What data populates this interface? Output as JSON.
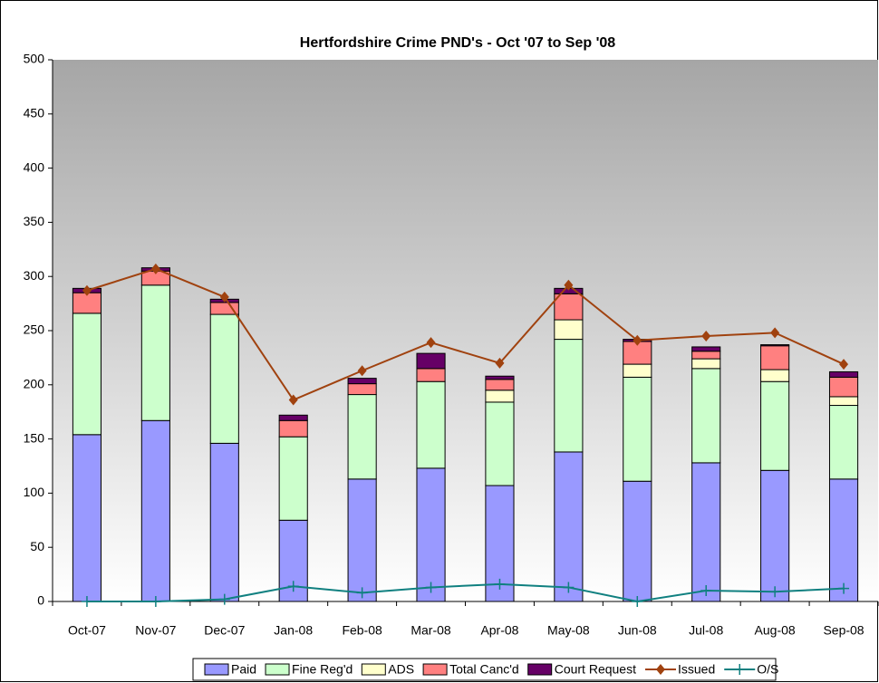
{
  "chart_data": {
    "type": "bar",
    "stacked": true,
    "title": "Hertfordshire Crime PND's - Oct '07 to Sep '08",
    "categories": [
      "Oct-07",
      "Nov-07",
      "Dec-07",
      "Jan-08",
      "Feb-08",
      "Mar-08",
      "Apr-08",
      "May-08",
      "Jun-08",
      "Jul-08",
      "Aug-08",
      "Sep-08"
    ],
    "ylim": [
      0,
      500
    ],
    "yticks": [
      0,
      50,
      100,
      150,
      200,
      250,
      300,
      350,
      400,
      450,
      500
    ],
    "series": [
      {
        "name": "Paid",
        "type": "bar",
        "color": "#9999ff",
        "values": [
          154,
          167,
          146,
          75,
          113,
          123,
          107,
          138,
          111,
          128,
          121,
          113
        ]
      },
      {
        "name": "Fine Reg'd",
        "type": "bar",
        "color": "#ccffcc",
        "values": [
          112,
          125,
          119,
          77,
          78,
          80,
          77,
          104,
          96,
          87,
          82,
          68
        ]
      },
      {
        "name": "ADS",
        "type": "bar",
        "color": "#ffffcc",
        "values": [
          0,
          0,
          0,
          0,
          0,
          0,
          11,
          18,
          12,
          9,
          11,
          8
        ]
      },
      {
        "name": "Total Canc'd",
        "type": "bar",
        "color": "#ff8080",
        "values": [
          19,
          13,
          11,
          15,
          10,
          12,
          10,
          24,
          21,
          7,
          22,
          18
        ]
      },
      {
        "name": "Court Request",
        "type": "bar",
        "color": "#660066",
        "values": [
          4,
          3,
          3,
          5,
          5,
          14,
          3,
          5,
          2,
          4,
          1,
          5
        ]
      },
      {
        "name": "Issued",
        "type": "line",
        "marker": "diamond",
        "color": "#a0420f",
        "values": [
          287,
          307,
          281,
          186,
          213,
          239,
          220,
          292,
          241,
          245,
          248,
          219
        ]
      },
      {
        "name": "O/S",
        "type": "line",
        "marker": "plus",
        "color": "#108080",
        "values": [
          0,
          0,
          2,
          14,
          8,
          13,
          16,
          13,
          0,
          10,
          9,
          12
        ]
      }
    ]
  }
}
